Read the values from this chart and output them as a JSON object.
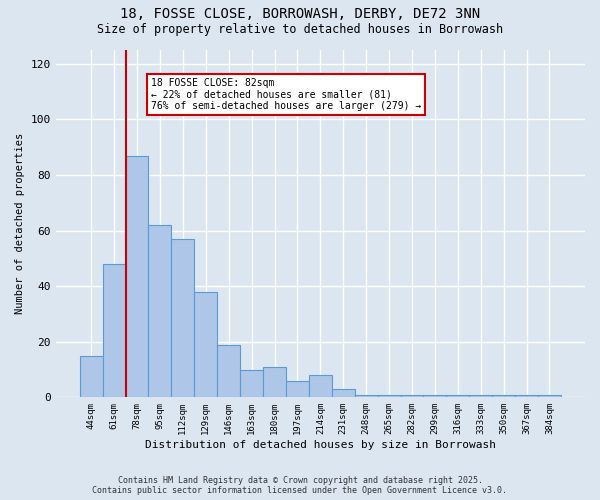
{
  "title": "18, FOSSE CLOSE, BORROWASH, DERBY, DE72 3NN",
  "subtitle": "Size of property relative to detached houses in Borrowash",
  "xlabel": "Distribution of detached houses by size in Borrowash",
  "ylabel": "Number of detached properties",
  "categories": [
    "44sqm",
    "61sqm",
    "78sqm",
    "95sqm",
    "112sqm",
    "129sqm",
    "146sqm",
    "163sqm",
    "180sqm",
    "197sqm",
    "214sqm",
    "231sqm",
    "248sqm",
    "265sqm",
    "282sqm",
    "299sqm",
    "316sqm",
    "333sqm",
    "350sqm",
    "367sqm",
    "384sqm"
  ],
  "bar_values": [
    15,
    48,
    87,
    62,
    57,
    38,
    19,
    10,
    11,
    6,
    8,
    3,
    1,
    1,
    1,
    1,
    1,
    1,
    1,
    1,
    1
  ],
  "bar_color": "#aec6e8",
  "bar_edge_color": "#5b9bd5",
  "annotation_text": "18 FOSSE CLOSE: 82sqm\n← 22% of detached houses are smaller (81)\n76% of semi-detached houses are larger (279) →",
  "annotation_box_color": "#ffffff",
  "annotation_box_edge": "#cc0000",
  "vline_color": "#cc0000",
  "vline_x_index": 2,
  "ylim": [
    0,
    125
  ],
  "yticks": [
    0,
    20,
    40,
    60,
    80,
    100,
    120
  ],
  "background_color": "#dce6f1",
  "plot_bg_color": "#dce6f1",
  "grid_color": "#ffffff",
  "footer_line1": "Contains HM Land Registry data © Crown copyright and database right 2025.",
  "footer_line2": "Contains public sector information licensed under the Open Government Licence v3.0."
}
